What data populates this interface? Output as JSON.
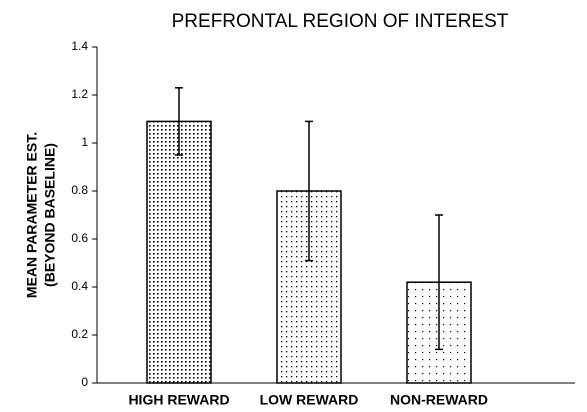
{
  "chart_data": {
    "type": "bar",
    "title": "PREFRONTAL REGION OF INTEREST",
    "y_label": [
      "MEAN PARAMETER EST.",
      "(BEYOND BASELINE)"
    ],
    "categories": [
      "HIGH REWARD",
      "LOW REWARD",
      "NON-REWARD"
    ],
    "values": [
      1.09,
      0.8,
      0.42
    ],
    "errors": [
      0.14,
      0.29,
      0.28
    ],
    "color": "#000000",
    "ylim": [
      0,
      1.4
    ],
    "yticks": [
      0,
      0.2,
      0.4,
      0.6,
      0.8,
      1,
      1.2,
      1.4
    ]
  }
}
